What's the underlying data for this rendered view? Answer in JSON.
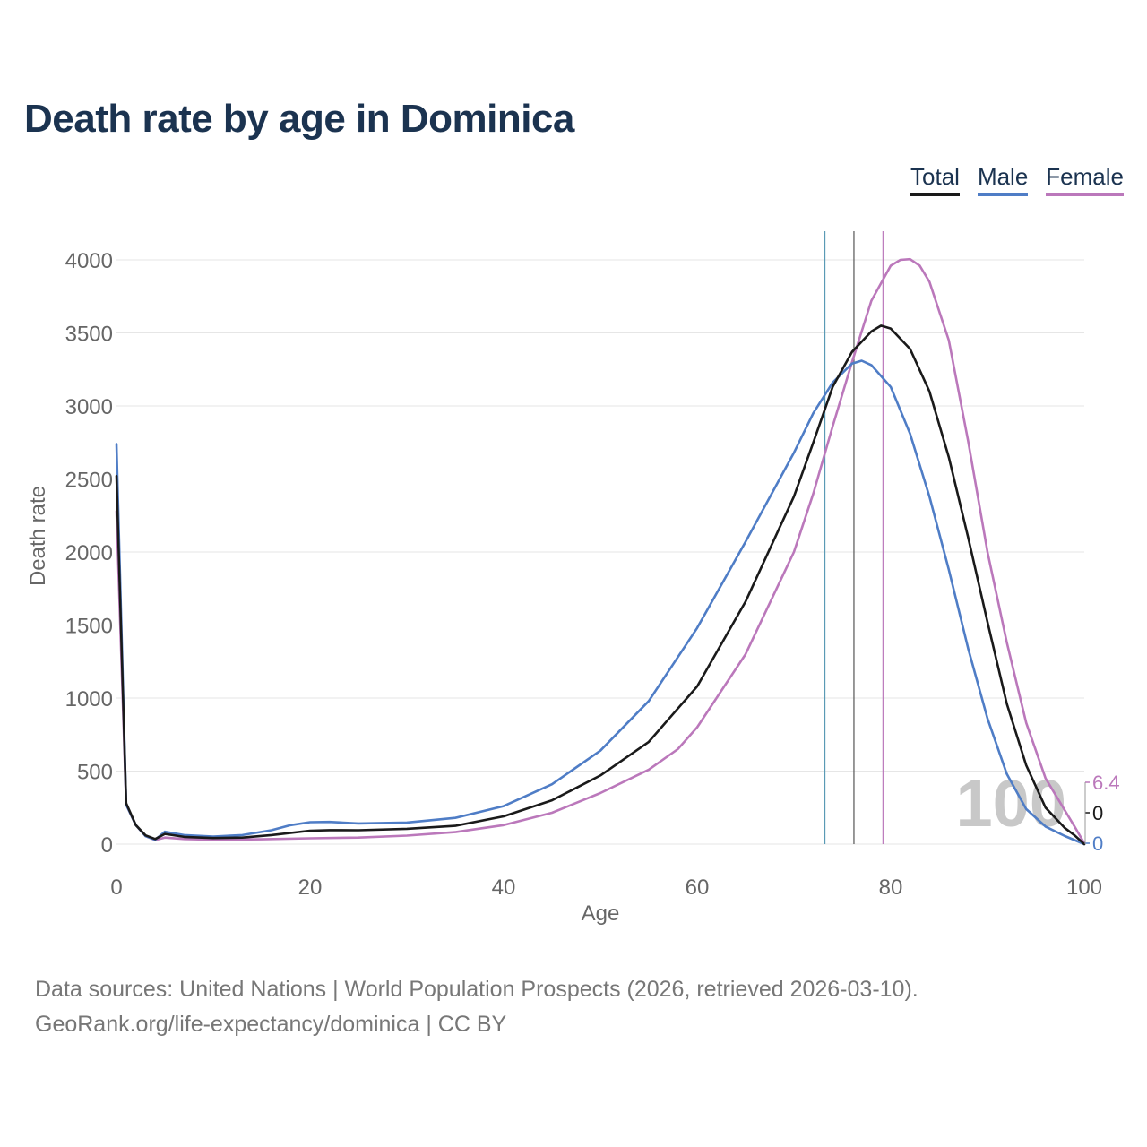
{
  "title": "Death rate by age in Dominica",
  "legend": {
    "total": "Total",
    "male": "Male",
    "female": "Female"
  },
  "colors": {
    "total": "#1a1a1a",
    "male": "#4f7dc6",
    "female": "#bb78bb",
    "grid": "#e6e6e6",
    "axis_text": "#666666",
    "big_label": "#c8c8c8"
  },
  "chart_data": {
    "type": "line",
    "title": "Death rate by age in Dominica",
    "xlabel": "Age",
    "ylabel": "Death rate",
    "xlim": [
      0,
      100
    ],
    "ylim": [
      0,
      4200
    ],
    "x_ticks": [
      0,
      20,
      40,
      60,
      80,
      100
    ],
    "y_ticks": [
      0,
      500,
      1000,
      1500,
      2000,
      2500,
      3000,
      3500,
      4000
    ],
    "grid": true,
    "legend_position": "top-right",
    "current_age_label": "100",
    "end_labels": {
      "female": "6.4",
      "total": "0",
      "male": "0"
    },
    "life_expectancy_markers": {
      "male": 73.2,
      "total": 76.2,
      "female": 79.2
    },
    "series": [
      {
        "name": "Total",
        "points": [
          [
            0,
            2520
          ],
          [
            1,
            280
          ],
          [
            2,
            130
          ],
          [
            3,
            60
          ],
          [
            4,
            35
          ],
          [
            5,
            70
          ],
          [
            7,
            50
          ],
          [
            10,
            42
          ],
          [
            13,
            45
          ],
          [
            16,
            62
          ],
          [
            20,
            92
          ],
          [
            22,
            96
          ],
          [
            25,
            95
          ],
          [
            30,
            105
          ],
          [
            35,
            125
          ],
          [
            40,
            190
          ],
          [
            45,
            300
          ],
          [
            50,
            470
          ],
          [
            55,
            700
          ],
          [
            60,
            1080
          ],
          [
            65,
            1660
          ],
          [
            70,
            2380
          ],
          [
            72,
            2750
          ],
          [
            74,
            3130
          ],
          [
            76,
            3370
          ],
          [
            78,
            3510
          ],
          [
            79,
            3550
          ],
          [
            80,
            3530
          ],
          [
            82,
            3390
          ],
          [
            84,
            3100
          ],
          [
            86,
            2650
          ],
          [
            88,
            2100
          ],
          [
            90,
            1520
          ],
          [
            92,
            960
          ],
          [
            94,
            540
          ],
          [
            96,
            250
          ],
          [
            98,
            110
          ],
          [
            99,
            60
          ],
          [
            100,
            0
          ]
        ]
      },
      {
        "name": "Male",
        "points": [
          [
            0,
            2740
          ],
          [
            1,
            270
          ],
          [
            2,
            130
          ],
          [
            3,
            55
          ],
          [
            4,
            30
          ],
          [
            5,
            85
          ],
          [
            7,
            62
          ],
          [
            10,
            52
          ],
          [
            13,
            62
          ],
          [
            16,
            95
          ],
          [
            18,
            130
          ],
          [
            20,
            150
          ],
          [
            22,
            152
          ],
          [
            25,
            142
          ],
          [
            30,
            148
          ],
          [
            35,
            180
          ],
          [
            40,
            260
          ],
          [
            45,
            410
          ],
          [
            50,
            640
          ],
          [
            55,
            980
          ],
          [
            60,
            1480
          ],
          [
            65,
            2070
          ],
          [
            70,
            2680
          ],
          [
            72,
            2950
          ],
          [
            74,
            3160
          ],
          [
            76,
            3290
          ],
          [
            77,
            3310
          ],
          [
            78,
            3280
          ],
          [
            80,
            3130
          ],
          [
            82,
            2810
          ],
          [
            84,
            2380
          ],
          [
            86,
            1880
          ],
          [
            88,
            1340
          ],
          [
            90,
            860
          ],
          [
            92,
            480
          ],
          [
            94,
            240
          ],
          [
            96,
            120
          ],
          [
            98,
            55
          ],
          [
            100,
            0
          ]
        ]
      },
      {
        "name": "Female",
        "points": [
          [
            0,
            2280
          ],
          [
            1,
            270
          ],
          [
            2,
            130
          ],
          [
            3,
            55
          ],
          [
            4,
            28
          ],
          [
            5,
            45
          ],
          [
            7,
            35
          ],
          [
            10,
            30
          ],
          [
            15,
            33
          ],
          [
            20,
            40
          ],
          [
            25,
            45
          ],
          [
            30,
            58
          ],
          [
            35,
            82
          ],
          [
            40,
            130
          ],
          [
            45,
            215
          ],
          [
            50,
            350
          ],
          [
            55,
            510
          ],
          [
            58,
            650
          ],
          [
            60,
            800
          ],
          [
            65,
            1300
          ],
          [
            70,
            2000
          ],
          [
            72,
            2400
          ],
          [
            74,
            2860
          ],
          [
            76,
            3300
          ],
          [
            78,
            3720
          ],
          [
            80,
            3960
          ],
          [
            81,
            4000
          ],
          [
            82,
            4005
          ],
          [
            83,
            3960
          ],
          [
            84,
            3850
          ],
          [
            86,
            3450
          ],
          [
            88,
            2760
          ],
          [
            90,
            2000
          ],
          [
            92,
            1380
          ],
          [
            94,
            830
          ],
          [
            96,
            450
          ],
          [
            98,
            230
          ],
          [
            99,
            120
          ],
          [
            100,
            6.4
          ]
        ]
      }
    ]
  },
  "footer": {
    "line1": "Data sources: United Nations | World Population Prospects (2026, retrieved 2026-03-10).",
    "line2": "GeoRank.org/life-expectancy/dominica | CC BY"
  }
}
